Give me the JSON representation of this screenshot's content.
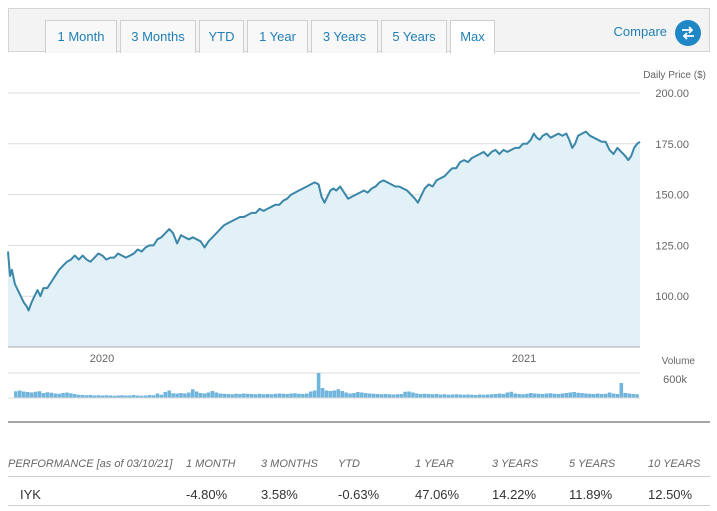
{
  "tabs": [
    {
      "label": "1 Month"
    },
    {
      "label": "3 Months"
    },
    {
      "label": "YTD"
    },
    {
      "label": "1 Year"
    },
    {
      "label": "3 Years"
    },
    {
      "label": "5 Years"
    },
    {
      "label": "Max",
      "active": true
    }
  ],
  "compare": {
    "label": "Compare",
    "icon": "swap-arrows-icon"
  },
  "colors": {
    "accent": "#1f87c6",
    "line": "#3a87a8",
    "fill": "#e2f0f8",
    "volume": "#72b5dc"
  },
  "chart_data": {
    "type": "line",
    "ylabel": "Daily Price ($)",
    "yticks": [
      "200.00",
      "175.00",
      "150.00",
      "125.00",
      "100.00"
    ],
    "ylim": [
      75,
      200
    ],
    "xtick_labels": [
      "2020",
      "2021"
    ],
    "volume_label": "Volume",
    "volume_tick": "600k",
    "grid": true,
    "series": [
      {
        "values": [
          [
            0,
            122
          ],
          [
            2,
            110
          ],
          [
            4,
            113
          ],
          [
            7,
            106
          ],
          [
            10,
            103
          ],
          [
            13,
            100
          ],
          [
            16,
            97
          ],
          [
            19,
            95
          ],
          [
            21,
            93
          ],
          [
            24,
            97
          ],
          [
            27,
            100
          ],
          [
            30,
            103
          ],
          [
            33,
            100
          ],
          [
            36,
            104
          ],
          [
            40,
            104
          ],
          [
            44,
            107
          ],
          [
            48,
            110
          ],
          [
            52,
            113
          ],
          [
            56,
            115
          ],
          [
            60,
            117
          ],
          [
            64,
            118
          ],
          [
            68,
            120
          ],
          [
            72,
            118
          ],
          [
            76,
            120
          ],
          [
            80,
            118
          ],
          [
            84,
            117
          ],
          [
            88,
            119
          ],
          [
            92,
            121
          ],
          [
            96,
            120
          ],
          [
            100,
            118
          ],
          [
            104,
            119
          ],
          [
            108,
            119
          ],
          [
            112,
            121
          ],
          [
            116,
            120
          ],
          [
            120,
            119
          ],
          [
            124,
            120
          ],
          [
            128,
            121
          ],
          [
            132,
            123
          ],
          [
            136,
            122
          ],
          [
            140,
            124
          ],
          [
            144,
            125
          ],
          [
            148,
            125
          ],
          [
            152,
            128
          ],
          [
            156,
            129
          ],
          [
            160,
            131
          ],
          [
            164,
            133
          ],
          [
            168,
            131
          ],
          [
            172,
            126
          ],
          [
            176,
            130
          ],
          [
            180,
            129
          ],
          [
            184,
            128
          ],
          [
            188,
            129
          ],
          [
            192,
            128
          ],
          [
            196,
            127
          ],
          [
            200,
            124
          ],
          [
            204,
            127
          ],
          [
            208,
            129
          ],
          [
            212,
            131
          ],
          [
            216,
            133
          ],
          [
            220,
            135
          ],
          [
            224,
            136
          ],
          [
            228,
            137
          ],
          [
            232,
            138
          ],
          [
            236,
            139
          ],
          [
            240,
            139
          ],
          [
            244,
            140
          ],
          [
            248,
            141
          ],
          [
            252,
            141
          ],
          [
            256,
            143
          ],
          [
            260,
            142
          ],
          [
            264,
            143
          ],
          [
            268,
            144
          ],
          [
            272,
            145
          ],
          [
            276,
            145
          ],
          [
            280,
            147
          ],
          [
            284,
            148
          ],
          [
            288,
            150
          ],
          [
            292,
            151
          ],
          [
            296,
            152
          ],
          [
            300,
            153
          ],
          [
            304,
            154
          ],
          [
            308,
            155
          ],
          [
            312,
            156
          ],
          [
            316,
            155
          ],
          [
            319,
            149
          ],
          [
            322,
            146
          ],
          [
            325,
            149
          ],
          [
            328,
            152
          ],
          [
            331,
            153
          ],
          [
            334,
            152
          ],
          [
            338,
            154
          ],
          [
            342,
            151
          ],
          [
            346,
            148
          ],
          [
            350,
            149
          ],
          [
            354,
            150
          ],
          [
            358,
            151
          ],
          [
            362,
            152
          ],
          [
            366,
            151
          ],
          [
            370,
            153
          ],
          [
            374,
            154
          ],
          [
            378,
            156
          ],
          [
            382,
            157
          ],
          [
            386,
            156
          ],
          [
            390,
            155
          ],
          [
            394,
            154
          ],
          [
            398,
            154
          ],
          [
            402,
            153
          ],
          [
            406,
            152
          ],
          [
            410,
            150
          ],
          [
            414,
            148
          ],
          [
            417,
            146
          ],
          [
            420,
            149
          ],
          [
            424,
            153
          ],
          [
            428,
            155
          ],
          [
            432,
            154
          ],
          [
            436,
            157
          ],
          [
            440,
            158
          ],
          [
            444,
            159
          ],
          [
            448,
            161
          ],
          [
            452,
            163
          ],
          [
            456,
            163
          ],
          [
            460,
            166
          ],
          [
            464,
            167
          ],
          [
            468,
            166
          ],
          [
            472,
            168
          ],
          [
            476,
            169
          ],
          [
            480,
            170
          ],
          [
            484,
            171
          ],
          [
            488,
            169
          ],
          [
            492,
            171
          ],
          [
            496,
            172
          ],
          [
            500,
            170
          ],
          [
            504,
            172
          ],
          [
            508,
            171
          ],
          [
            512,
            172
          ],
          [
            516,
            173
          ],
          [
            520,
            173
          ],
          [
            524,
            175
          ],
          [
            528,
            175
          ],
          [
            532,
            177
          ],
          [
            535,
            180
          ],
          [
            538,
            178
          ],
          [
            541,
            177
          ],
          [
            544,
            179
          ],
          [
            548,
            180
          ],
          [
            552,
            178
          ],
          [
            556,
            179
          ],
          [
            560,
            180
          ],
          [
            564,
            179
          ],
          [
            568,
            180
          ],
          [
            571,
            177
          ],
          [
            574,
            173
          ],
          [
            577,
            175
          ],
          [
            580,
            179
          ],
          [
            584,
            180
          ],
          [
            588,
            181
          ],
          [
            592,
            179
          ],
          [
            596,
            178
          ],
          [
            600,
            177
          ],
          [
            604,
            176
          ],
          [
            608,
            176
          ],
          [
            612,
            172
          ],
          [
            616,
            170
          ],
          [
            620,
            173
          ],
          [
            624,
            171
          ],
          [
            628,
            169
          ],
          [
            631,
            167
          ],
          [
            634,
            169
          ],
          [
            637,
            173
          ],
          [
            640,
            175
          ],
          [
            643,
            176
          ]
        ]
      }
    ],
    "volume": [
      [
        8,
        0.27
      ],
      [
        12,
        0.3
      ],
      [
        16,
        0.26
      ],
      [
        20,
        0.24
      ],
      [
        24,
        0.22
      ],
      [
        28,
        0.25
      ],
      [
        32,
        0.27
      ],
      [
        36,
        0.2
      ],
      [
        40,
        0.23
      ],
      [
        44,
        0.21
      ],
      [
        48,
        0.18
      ],
      [
        52,
        0.17
      ],
      [
        56,
        0.2
      ],
      [
        60,
        0.22
      ],
      [
        64,
        0.19
      ],
      [
        68,
        0.16
      ],
      [
        72,
        0.13
      ],
      [
        76,
        0.12
      ],
      [
        80,
        0.11
      ],
      [
        84,
        0.12
      ],
      [
        88,
        0.1
      ],
      [
        92,
        0.11
      ],
      [
        96,
        0.1
      ],
      [
        100,
        0.11
      ],
      [
        104,
        0.1
      ],
      [
        108,
        0.09
      ],
      [
        112,
        0.1
      ],
      [
        116,
        0.11
      ],
      [
        120,
        0.1
      ],
      [
        124,
        0.1
      ],
      [
        128,
        0.12
      ],
      [
        132,
        0.1
      ],
      [
        136,
        0.09
      ],
      [
        140,
        0.1
      ],
      [
        144,
        0.12
      ],
      [
        148,
        0.11
      ],
      [
        152,
        0.18
      ],
      [
        156,
        0.13
      ],
      [
        160,
        0.24
      ],
      [
        164,
        0.3
      ],
      [
        168,
        0.19
      ],
      [
        172,
        0.18
      ],
      [
        176,
        0.2
      ],
      [
        180,
        0.18
      ],
      [
        184,
        0.22
      ],
      [
        188,
        0.35
      ],
      [
        192,
        0.26
      ],
      [
        196,
        0.2
      ],
      [
        200,
        0.18
      ],
      [
        204,
        0.22
      ],
      [
        208,
        0.28
      ],
      [
        212,
        0.22
      ],
      [
        216,
        0.18
      ],
      [
        220,
        0.17
      ],
      [
        224,
        0.16
      ],
      [
        228,
        0.15
      ],
      [
        232,
        0.17
      ],
      [
        236,
        0.16
      ],
      [
        240,
        0.18
      ],
      [
        244,
        0.17
      ],
      [
        248,
        0.16
      ],
      [
        252,
        0.15
      ],
      [
        256,
        0.17
      ],
      [
        260,
        0.15
      ],
      [
        264,
        0.16
      ],
      [
        268,
        0.15
      ],
      [
        272,
        0.17
      ],
      [
        276,
        0.18
      ],
      [
        280,
        0.17
      ],
      [
        284,
        0.16
      ],
      [
        288,
        0.18
      ],
      [
        292,
        0.19
      ],
      [
        296,
        0.17
      ],
      [
        300,
        0.16
      ],
      [
        304,
        0.18
      ],
      [
        308,
        0.26
      ],
      [
        312,
        0.3
      ],
      [
        316,
        1.0
      ],
      [
        320,
        0.4
      ],
      [
        324,
        0.3
      ],
      [
        328,
        0.28
      ],
      [
        332,
        0.3
      ],
      [
        336,
        0.35
      ],
      [
        340,
        0.28
      ],
      [
        344,
        0.22
      ],
      [
        348,
        0.18
      ],
      [
        352,
        0.2
      ],
      [
        356,
        0.24
      ],
      [
        360,
        0.22
      ],
      [
        364,
        0.2
      ],
      [
        368,
        0.18
      ],
      [
        372,
        0.17
      ],
      [
        376,
        0.16
      ],
      [
        380,
        0.15
      ],
      [
        384,
        0.16
      ],
      [
        388,
        0.15
      ],
      [
        392,
        0.14
      ],
      [
        396,
        0.15
      ],
      [
        400,
        0.16
      ],
      [
        404,
        0.25
      ],
      [
        408,
        0.26
      ],
      [
        412,
        0.22
      ],
      [
        416,
        0.18
      ],
      [
        420,
        0.16
      ],
      [
        424,
        0.17
      ],
      [
        428,
        0.16
      ],
      [
        432,
        0.15
      ],
      [
        436,
        0.16
      ],
      [
        440,
        0.14
      ],
      [
        444,
        0.15
      ],
      [
        448,
        0.13
      ],
      [
        452,
        0.14
      ],
      [
        456,
        0.15
      ],
      [
        460,
        0.14
      ],
      [
        464,
        0.13
      ],
      [
        468,
        0.14
      ],
      [
        472,
        0.13
      ],
      [
        476,
        0.12
      ],
      [
        480,
        0.14
      ],
      [
        484,
        0.13
      ],
      [
        488,
        0.14
      ],
      [
        492,
        0.15
      ],
      [
        496,
        0.16
      ],
      [
        500,
        0.18
      ],
      [
        504,
        0.16
      ],
      [
        508,
        0.22
      ],
      [
        512,
        0.25
      ],
      [
        516,
        0.18
      ],
      [
        520,
        0.16
      ],
      [
        524,
        0.15
      ],
      [
        528,
        0.17
      ],
      [
        532,
        0.2
      ],
      [
        536,
        0.18
      ],
      [
        540,
        0.17
      ],
      [
        544,
        0.16
      ],
      [
        548,
        0.18
      ],
      [
        552,
        0.19
      ],
      [
        556,
        0.17
      ],
      [
        560,
        0.16
      ],
      [
        564,
        0.18
      ],
      [
        568,
        0.2
      ],
      [
        572,
        0.22
      ],
      [
        576,
        0.24
      ],
      [
        580,
        0.21
      ],
      [
        584,
        0.2
      ],
      [
        588,
        0.18
      ],
      [
        592,
        0.17
      ],
      [
        596,
        0.16
      ],
      [
        600,
        0.18
      ],
      [
        604,
        0.16
      ],
      [
        608,
        0.17
      ],
      [
        612,
        0.22
      ],
      [
        616,
        0.18
      ],
      [
        620,
        0.16
      ],
      [
        624,
        0.6
      ],
      [
        628,
        0.2
      ],
      [
        632,
        0.18
      ],
      [
        636,
        0.16
      ],
      [
        640,
        0.15
      ]
    ]
  },
  "performance": {
    "header_label": "PERFORMANCE [as of 03/10/21]",
    "columns": [
      "1 MONTH",
      "3 MONTHS",
      "YTD",
      "1 YEAR",
      "3 YEARS",
      "5 YEARS",
      "10 YEARS"
    ],
    "ticker": "IYK",
    "values": [
      "-4.80%",
      "3.58%",
      "-0.63%",
      "47.06%",
      "14.22%",
      "11.89%",
      "12.50%"
    ]
  }
}
